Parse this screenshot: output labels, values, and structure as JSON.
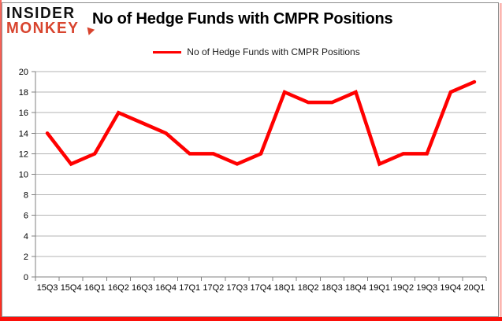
{
  "logo": {
    "line1": "INSIDER",
    "line2": "MONKEY",
    "accent_color": "#d8442e"
  },
  "title": "No of Hedge Funds with CMPR Positions",
  "legend": {
    "label": "No of Hedge Funds with CMPR Positions",
    "color": "#ff0000"
  },
  "frame": {
    "border_red": "#fb100a",
    "inner_border_gray": "#8c8c8c"
  },
  "chart_data": {
    "type": "line",
    "title": "No of Hedge Funds with CMPR Positions",
    "series_name": "No of Hedge Funds with CMPR Positions",
    "categories": [
      "15Q3",
      "15Q4",
      "16Q1",
      "16Q2",
      "16Q3",
      "16Q4",
      "17Q1",
      "17Q2",
      "17Q3",
      "17Q4",
      "18Q1",
      "18Q2",
      "18Q3",
      "18Q4",
      "19Q1",
      "19Q2",
      "19Q3",
      "19Q4",
      "20Q1"
    ],
    "values": [
      14,
      11,
      12,
      16,
      15,
      14,
      12,
      12,
      11,
      12,
      18,
      17,
      17,
      18,
      11,
      12,
      12,
      18,
      19
    ],
    "ylim": [
      0,
      20
    ],
    "ytick_step": 2,
    "xlabel": "",
    "ylabel": "",
    "grid": true,
    "legend_position": "top-center",
    "line_color": "#ff0000",
    "line_width": 4.5,
    "gridline_color": "#b3b3b3",
    "axis_color": "#808080",
    "tick_label_color": "#000000"
  }
}
